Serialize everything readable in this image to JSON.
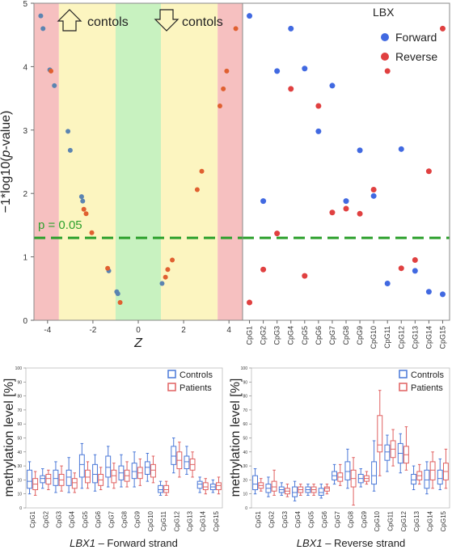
{
  "chart_data": [
    {
      "type": "scatter",
      "panel": "top-left",
      "xlabel": "Z",
      "ylabel": "−1*log10(p-value)",
      "xlim": [
        -4.6,
        4.6
      ],
      "ylim": [
        0,
        5
      ],
      "xticks": [
        "-4",
        "-2",
        "0",
        "2",
        "4"
      ],
      "yticks": [
        "0",
        "1",
        "2",
        "3",
        "4",
        "5"
      ],
      "zones": {
        "left_label": "contols",
        "right_label": "contols",
        "left_arrow": "up",
        "right_arrow": "down"
      },
      "threshold_label": "p = 0.05",
      "threshold_value": 1.3,
      "colors": {
        "forward": "#5b84b1",
        "reverse": "#e06030",
        "red_zone": "#f6c0c0",
        "yellow_zone": "#fcf5c0",
        "green_zone": "#c8f2c0",
        "threshold": "#2ca02c"
      },
      "points_forward": [
        [
          -4.3,
          4.8
        ],
        [
          -4.2,
          4.6
        ],
        [
          -3.9,
          3.95
        ],
        [
          -3.7,
          3.7
        ],
        [
          -3.1,
          2.98
        ],
        [
          -3.0,
          2.68
        ],
        [
          -2.5,
          1.95
        ],
        [
          -2.45,
          1.88
        ],
        [
          -1.3,
          0.78
        ],
        [
          -0.95,
          0.45
        ],
        [
          -0.9,
          0.42
        ],
        [
          1.05,
          0.58
        ]
      ],
      "points_reverse": [
        [
          -3.85,
          3.93
        ],
        [
          -2.4,
          1.75
        ],
        [
          -2.3,
          1.68
        ],
        [
          -2.05,
          1.38
        ],
        [
          -1.35,
          0.82
        ],
        [
          -0.8,
          0.28
        ],
        [
          1.2,
          0.68
        ],
        [
          1.3,
          0.8
        ],
        [
          1.5,
          0.95
        ],
        [
          2.6,
          2.06
        ],
        [
          2.8,
          2.35
        ],
        [
          3.6,
          3.38
        ],
        [
          3.75,
          3.65
        ],
        [
          3.9,
          3.93
        ],
        [
          4.3,
          4.6
        ]
      ]
    },
    {
      "type": "scatter",
      "panel": "top-right",
      "title": "LBX",
      "ylim": [
        0,
        5
      ],
      "categories": [
        "CpG1",
        "CpG2",
        "CpG3",
        "CpG4",
        "CpG5",
        "CpG6",
        "CpG7",
        "CpG8",
        "CpG9",
        "CpG10",
        "CpG11",
        "CpG12",
        "CpG13",
        "CpG14",
        "CpG15"
      ],
      "series": [
        {
          "name": "Forward",
          "color": "#4169e1",
          "values": [
            4.8,
            1.88,
            3.93,
            4.6,
            3.97,
            2.98,
            3.7,
            1.88,
            2.68,
            1.96,
            0.58,
            2.7,
            0.78,
            0.45,
            0.41
          ]
        },
        {
          "name": "Reverse",
          "color": "#e04040",
          "values": [
            0.28,
            0.8,
            1.37,
            3.65,
            0.7,
            3.38,
            1.7,
            1.76,
            1.68,
            2.06,
            3.93,
            0.82,
            0.95,
            2.35,
            4.6
          ]
        }
      ]
    },
    {
      "type": "box",
      "panel": "bottom-left",
      "ylabel": "methylation level [%]",
      "xlabel_gene": "LBX1",
      "xlabel_rest": " – Forward strand",
      "ylim": [
        0,
        100
      ],
      "yticks": [
        "0",
        "10",
        "20",
        "30",
        "40",
        "50",
        "60",
        "70",
        "80",
        "90",
        "100"
      ],
      "categories": [
        "CpG1",
        "CpG2",
        "CpG3",
        "CpG4",
        "CpG5",
        "CpG6",
        "CpG7",
        "CpG8",
        "CpG9",
        "CpG10",
        "CpG11",
        "CpG12",
        "CpG13",
        "CpG14",
        "CpG15"
      ],
      "series": [
        {
          "name": "Controls",
          "color": "#4a78d8",
          "boxes": [
            [
              10,
              14,
              19,
              27,
              33
            ],
            [
              14,
              18,
              21,
              23,
              28
            ],
            [
              11,
              16,
              21,
              27,
              33
            ],
            [
              11,
              16,
              22,
              27,
              36
            ],
            [
              14,
              22,
              31,
              38,
              46
            ],
            [
              12,
              18,
              24,
              31,
              38
            ],
            [
              15,
              22,
              29,
              37,
              44
            ],
            [
              15,
              20,
              25,
              30,
              38
            ],
            [
              15,
              21,
              26,
              32,
              40
            ],
            [
              19,
              24,
              29,
              33,
              39
            ],
            [
              9,
              11,
              13,
              16,
              19
            ],
            [
              25,
              31,
              37,
              44,
              50
            ],
            [
              24,
              28,
              33,
              37,
              44
            ],
            [
              11,
              14,
              17,
              19,
              22
            ],
            [
              11,
              13,
              15,
              17,
              20
            ]
          ]
        },
        {
          "name": "Patients",
          "color": "#e06060",
          "boxes": [
            [
              9,
              13,
              17,
              21,
              26
            ],
            [
              13,
              17,
              21,
              24,
              27
            ],
            [
              12,
              16,
              20,
              24,
              30
            ],
            [
              11,
              14,
              18,
              21,
              25
            ],
            [
              14,
              18,
              22,
              27,
              33
            ],
            [
              13,
              16,
              20,
              24,
              29
            ],
            [
              14,
              18,
              23,
              27,
              32
            ],
            [
              15,
              19,
              23,
              27,
              33
            ],
            [
              16,
              21,
              25,
              29,
              35
            ],
            [
              18,
              22,
              27,
              31,
              37
            ],
            [
              9,
              11,
              13,
              16,
              19
            ],
            [
              22,
              28,
              34,
              40,
              47
            ],
            [
              22,
              27,
              31,
              35,
              40
            ],
            [
              10,
              13,
              15,
              18,
              21
            ],
            [
              10,
              13,
              16,
              18,
              22
            ]
          ]
        }
      ]
    },
    {
      "type": "box",
      "panel": "bottom-right",
      "ylabel": "methylation level [%]",
      "xlabel_gene": "LBX1",
      "xlabel_rest": " – Reverse strand",
      "ylim": [
        0,
        100
      ],
      "yticks": [
        "0",
        "10",
        "20",
        "30",
        "40",
        "50",
        "60",
        "70",
        "80",
        "90",
        "100"
      ],
      "categories": [
        "CpG1",
        "CpG2",
        "CpG3",
        "CpG4",
        "CpG5",
        "CpG6",
        "CpG7",
        "CpG8",
        "CpG9",
        "CpG10",
        "CpG11",
        "CpG12",
        "CpG13",
        "CpG14",
        "CpG15"
      ],
      "series": [
        {
          "name": "Controls",
          "color": "#4a78d8",
          "boxes": [
            [
              10,
              13,
              17,
              23,
              28
            ],
            [
              8,
              11,
              14,
              17,
              22
            ],
            [
              9,
              11,
              13,
              15,
              18
            ],
            [
              5,
              8,
              11,
              15,
              19
            ],
            [
              9,
              11,
              13,
              15,
              17
            ],
            [
              7,
              9,
              11,
              14,
              17
            ],
            [
              17,
              20,
              23,
              26,
              31
            ],
            [
              14,
              20,
              26,
              33,
              42
            ],
            [
              15,
              18,
              21,
              24,
              28
            ],
            [
              12,
              17,
              23,
              33,
              48
            ],
            [
              26,
              34,
              40,
              45,
              52
            ],
            [
              25,
              32,
              39,
              46,
              53
            ],
            [
              13,
              17,
              20,
              24,
              30
            ],
            [
              10,
              14,
              20,
              27,
              33
            ],
            [
              13,
              17,
              21,
              27,
              35
            ]
          ]
        },
        {
          "name": "Patients",
          "color": "#e06060",
          "boxes": [
            [
              12,
              14,
              16,
              18,
              21
            ],
            [
              9,
              12,
              15,
              19,
              27
            ],
            [
              8,
              10,
              12,
              14,
              17
            ],
            [
              9,
              11,
              13,
              15,
              17
            ],
            [
              9,
              11,
              13,
              15,
              17
            ],
            [
              10,
              12,
              14,
              15,
              17
            ],
            [
              16,
              19,
              22,
              25,
              31
            ],
            [
              2,
              15,
              21,
              27,
              36
            ],
            [
              17,
              19,
              21,
              23,
              26
            ],
            [
              23,
              40,
              45,
              66,
              84
            ],
            [
              30,
              36,
              42,
              48,
              56
            ],
            [
              27,
              32,
              38,
              44,
              58
            ],
            [
              17,
              20,
              23,
              26,
              31
            ],
            [
              14,
              20,
              27,
              33,
              40
            ],
            [
              14,
              20,
              26,
              32,
              42
            ]
          ]
        }
      ]
    }
  ]
}
